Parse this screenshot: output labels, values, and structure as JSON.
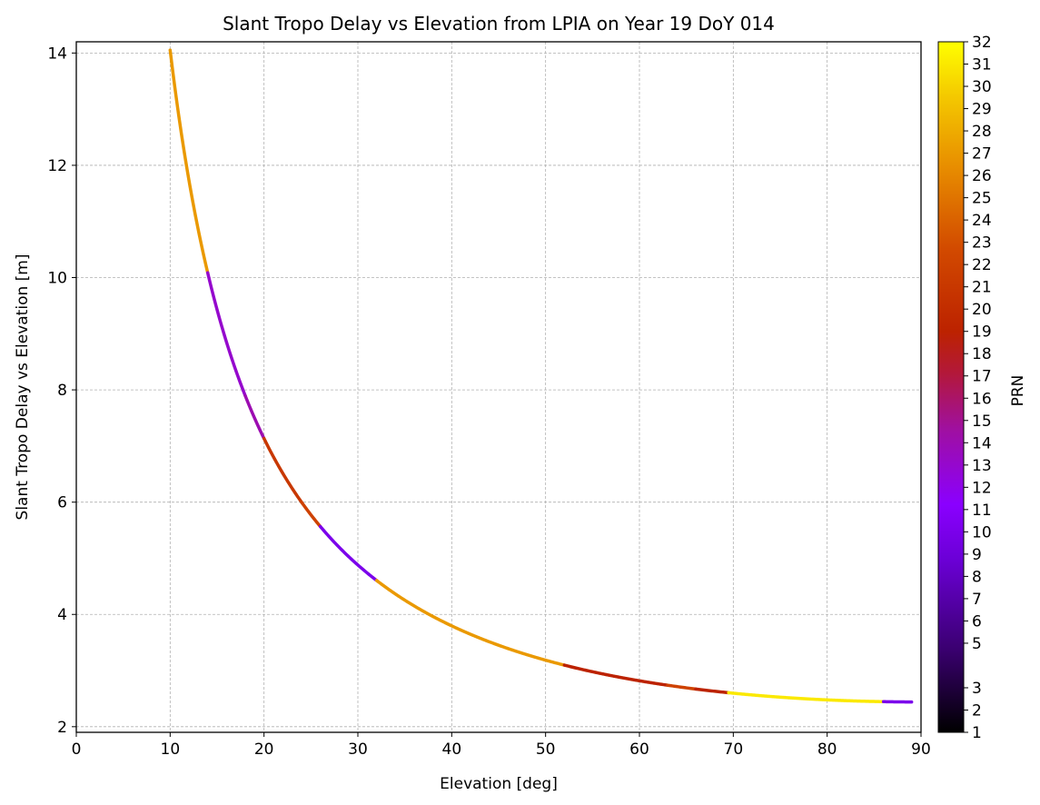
{
  "chart_data": {
    "type": "scatter",
    "title": "Slant Tropo Delay vs Elevation from LPIA on Year 19 DoY 014",
    "xlabel": "Elevation [deg]",
    "ylabel": "Slant Tropo Delay vs Elevation [m]",
    "xlim": [
      0,
      90
    ],
    "ylim": [
      1.9,
      14.2
    ],
    "x_ticks": [
      0,
      10,
      20,
      30,
      40,
      50,
      60,
      70,
      80,
      90
    ],
    "y_ticks": [
      2,
      4,
      6,
      8,
      10,
      12,
      14
    ],
    "grid": true,
    "colorbar": {
      "label": "PRN",
      "colormap": "gnuplot",
      "range": [
        1,
        32
      ],
      "ticks": [
        1,
        2,
        3,
        5,
        6,
        7,
        8,
        9,
        10,
        11,
        12,
        13,
        14,
        15,
        16,
        17,
        18,
        19,
        20,
        21,
        22,
        23,
        24,
        25,
        26,
        27,
        28,
        29,
        30,
        31,
        32
      ]
    },
    "model": {
      "zenith_delay_m": 2.44,
      "description": "delay = zenith_delay / sin(elevation)"
    },
    "segments": [
      {
        "x_range": [
          10,
          14
        ],
        "prn": 27
      },
      {
        "x_range": [
          14,
          18
        ],
        "prn": 13
      },
      {
        "x_range": [
          18,
          20
        ],
        "prn": 14
      },
      {
        "x_range": [
          20,
          24
        ],
        "prn": 21
      },
      {
        "x_range": [
          24,
          26
        ],
        "prn": 22
      },
      {
        "x_range": [
          26,
          32
        ],
        "prn": 10
      },
      {
        "x_range": [
          32,
          52
        ],
        "prn": 27
      },
      {
        "x_range": [
          52,
          63
        ],
        "prn": 19
      },
      {
        "x_range": [
          63,
          66
        ],
        "prn": 22
      },
      {
        "x_range": [
          66,
          69.5
        ],
        "prn": 19
      },
      {
        "x_range": [
          69.5,
          86
        ],
        "prn": 31
      },
      {
        "x_range": [
          86,
          89
        ],
        "prn": 10
      }
    ]
  }
}
